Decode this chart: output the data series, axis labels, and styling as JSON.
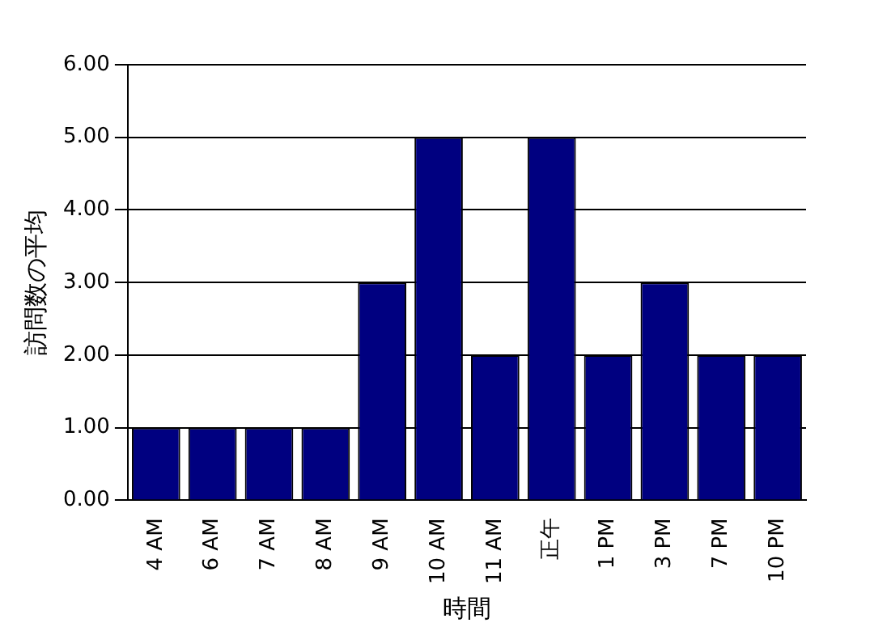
{
  "chart_data": {
    "type": "bar",
    "xlabel": "時間",
    "ylabel": "訪問数の平均",
    "categories": [
      "4 AM",
      "6 AM",
      "7 AM",
      "8 AM",
      "9 AM",
      "10 AM",
      "11 AM",
      "正午",
      "1 PM",
      "3 PM",
      "7 PM",
      "10 PM"
    ],
    "values": [
      1,
      1,
      1,
      1,
      3,
      5,
      2,
      5,
      2,
      3,
      2,
      2
    ],
    "color": "#000080",
    "ylim": [
      0,
      6
    ],
    "yticks": [
      {
        "value": 0,
        "label": "0.00"
      },
      {
        "value": 1,
        "label": "1.00"
      },
      {
        "value": 2,
        "label": "2.00"
      },
      {
        "value": 3,
        "label": "3.00"
      },
      {
        "value": 4,
        "label": "4.00"
      },
      {
        "value": 5,
        "label": "5.00"
      },
      {
        "value": 6,
        "label": "6.00"
      }
    ],
    "grid": "y",
    "legend": false
  }
}
